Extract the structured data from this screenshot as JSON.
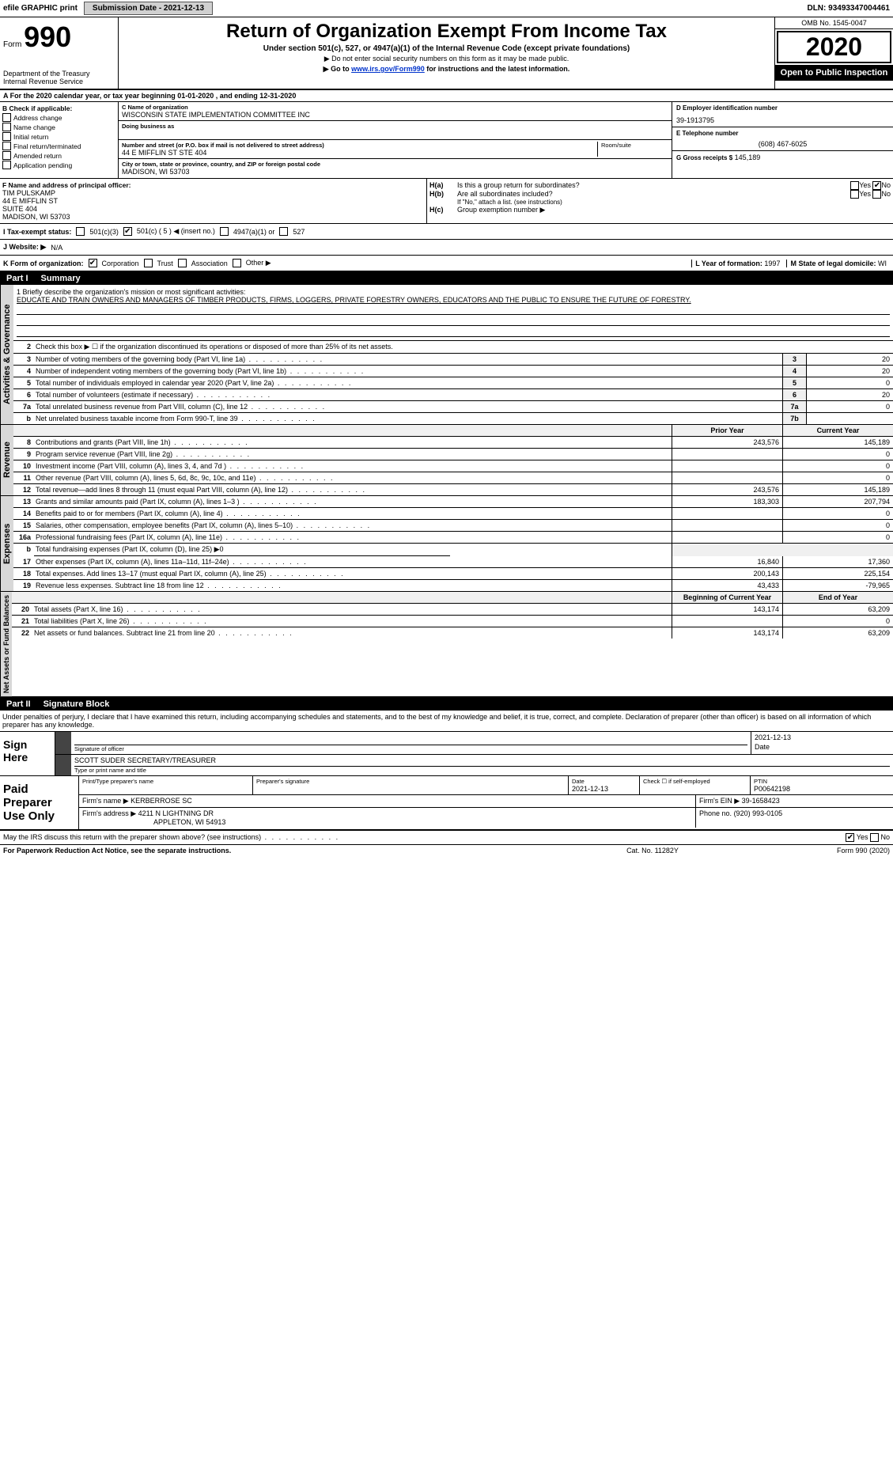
{
  "top": {
    "efile": "efile GRAPHIC print",
    "submit_btn": "Submission Date - 2021-12-13",
    "dln": "DLN: 93493347004461"
  },
  "header": {
    "form_word": "Form",
    "form_no": "990",
    "dept": "Department of the Treasury\nInternal Revenue Service",
    "title": "Return of Organization Exempt From Income Tax",
    "subtitle": "Under section 501(c), 527, or 4947(a)(1) of the Internal Revenue Code (except private foundations)",
    "note": "▶ Do not enter social security numbers on this form as it may be made public.",
    "goto_pre": "▶ Go to ",
    "goto_link": "www.irs.gov/Form990",
    "goto_post": " for instructions and the latest information.",
    "omb": "OMB No. 1545-0047",
    "year": "2020",
    "open": "Open to Public Inspection"
  },
  "period": "A For the 2020 calendar year, or tax year beginning 01-01-2020     , and ending 12-31-2020",
  "boxB": {
    "hdr": "B Check if applicable:",
    "opts": [
      "Address change",
      "Name change",
      "Initial return",
      "Final return/terminated",
      "Amended return",
      "Application pending"
    ]
  },
  "c": {
    "name_lbl": "C Name of organization",
    "name": "WISCONSIN STATE IMPLEMENTATION COMMITTEE INC",
    "dba_lbl": "Doing business as",
    "dba": "",
    "addr_lbl": "Number and street (or P.O. box if mail is not delivered to street address)",
    "room_lbl": "Room/suite",
    "addr": "44 E MIFFLIN ST STE 404",
    "city_lbl": "City or town, state or province, country, and ZIP or foreign postal code",
    "city": "MADISON, WI  53703"
  },
  "d": {
    "lbl": "D Employer identification number",
    "val": "39-1913795"
  },
  "e": {
    "lbl": "E Telephone number",
    "val": "(608) 467-6025"
  },
  "g": {
    "lbl": "G Gross receipts $",
    "val": "145,189"
  },
  "f": {
    "lbl": "F  Name and address of principal officer:",
    "name": "TIM PULSKAMP",
    "l1": "44 E MIFFLIN ST",
    "l2": "SUITE 404",
    "l3": "MADISON, WI  53703"
  },
  "h": {
    "a_q": "Is this a group return for subordinates?",
    "b_q": "Are all subordinates included?",
    "b_note": "If \"No,\" attach a list. (see instructions)",
    "c_q": "Group exemption number ▶",
    "yes": "Yes",
    "no": "No"
  },
  "i": {
    "lbl": "I   Tax-exempt status:",
    "o1": "501(c)(3)",
    "o2": "501(c) ( 5 ) ◀ (insert no.)",
    "o3": "4947(a)(1) or",
    "o4": "527"
  },
  "j": {
    "lbl": "J  Website: ▶",
    "val": "N/A"
  },
  "k": {
    "lbl": "K Form of organization:",
    "opts": [
      "Corporation",
      "Trust",
      "Association",
      "Other ▶"
    ]
  },
  "l": {
    "lbl": "L Year of formation:",
    "val": "1997"
  },
  "m": {
    "lbl": "M State of legal domicile:",
    "val": "WI"
  },
  "part1": {
    "pt": "Part I",
    "title": "Summary"
  },
  "mission": {
    "lead": "1   Briefly describe the organization's mission or most significant activities:",
    "text": "EDUCATE AND TRAIN OWNERS AND MANAGERS OF TIMBER PRODUCTS, FIRMS, LOGGERS, PRIVATE FORESTRY OWNERS, EDUCATORS AND THE PUBLIC TO ENSURE THE FUTURE OF FORESTRY."
  },
  "gov": {
    "side": "Activities & Governance",
    "l2": "Check this box ▶ ☐ if the organization discontinued its operations or disposed of more than 25% of its net assets.",
    "rows": [
      {
        "n": "3",
        "t": "Number of voting members of the governing body (Part VI, line 1a)",
        "b": "3",
        "v": "20"
      },
      {
        "n": "4",
        "t": "Number of independent voting members of the governing body (Part VI, line 1b)",
        "b": "4",
        "v": "20"
      },
      {
        "n": "5",
        "t": "Total number of individuals employed in calendar year 2020 (Part V, line 2a)",
        "b": "5",
        "v": "0"
      },
      {
        "n": "6",
        "t": "Total number of volunteers (estimate if necessary)",
        "b": "6",
        "v": "20"
      },
      {
        "n": "7a",
        "t": "Total unrelated business revenue from Part VIII, column (C), line 12",
        "b": "7a",
        "v": "0"
      },
      {
        "n": "b",
        "t": "Net unrelated business taxable income from Form 990-T, line 39",
        "b": "7b",
        "v": ""
      }
    ]
  },
  "yrhdr": {
    "py": "Prior Year",
    "cy": "Current Year"
  },
  "rev": {
    "side": "Revenue",
    "rows": [
      {
        "n": "8",
        "t": "Contributions and grants (Part VIII, line 1h)",
        "py": "243,576",
        "cy": "145,189"
      },
      {
        "n": "9",
        "t": "Program service revenue (Part VIII, line 2g)",
        "py": "",
        "cy": "0"
      },
      {
        "n": "10",
        "t": "Investment income (Part VIII, column (A), lines 3, 4, and 7d )",
        "py": "",
        "cy": "0"
      },
      {
        "n": "11",
        "t": "Other revenue (Part VIII, column (A), lines 5, 6d, 8c, 9c, 10c, and 11e)",
        "py": "",
        "cy": "0"
      },
      {
        "n": "12",
        "t": "Total revenue—add lines 8 through 11 (must equal Part VIII, column (A), line 12)",
        "py": "243,576",
        "cy": "145,189"
      }
    ]
  },
  "exp": {
    "side": "Expenses",
    "rows": [
      {
        "n": "13",
        "t": "Grants and similar amounts paid (Part IX, column (A), lines 1–3 )",
        "py": "183,303",
        "cy": "207,794"
      },
      {
        "n": "14",
        "t": "Benefits paid to or for members (Part IX, column (A), line 4)",
        "py": "",
        "cy": "0"
      },
      {
        "n": "15",
        "t": "Salaries, other compensation, employee benefits (Part IX, column (A), lines 5–10)",
        "py": "",
        "cy": "0"
      },
      {
        "n": "16a",
        "t": "Professional fundraising fees (Part IX, column (A), line 11e)",
        "py": "",
        "cy": "0"
      },
      {
        "n": "b",
        "t": "Total fundraising expenses (Part IX, column (D), line 25) ▶0",
        "py": "—",
        "cy": "—"
      },
      {
        "n": "17",
        "t": "Other expenses (Part IX, column (A), lines 11a–11d, 11f–24e)",
        "py": "16,840",
        "cy": "17,360"
      },
      {
        "n": "18",
        "t": "Total expenses. Add lines 13–17 (must equal Part IX, column (A), line 25)",
        "py": "200,143",
        "cy": "225,154"
      },
      {
        "n": "19",
        "t": "Revenue less expenses. Subtract line 18 from line 12",
        "py": "43,433",
        "cy": "-79,965"
      }
    ]
  },
  "nahdr": {
    "py": "Beginning of Current Year",
    "cy": "End of Year"
  },
  "na": {
    "side": "Net Assets or Fund Balances",
    "rows": [
      {
        "n": "20",
        "t": "Total assets (Part X, line 16)",
        "py": "143,174",
        "cy": "63,209"
      },
      {
        "n": "21",
        "t": "Total liabilities (Part X, line 26)",
        "py": "",
        "cy": "0"
      },
      {
        "n": "22",
        "t": "Net assets or fund balances. Subtract line 21 from line 20",
        "py": "143,174",
        "cy": "63,209"
      }
    ]
  },
  "part2": {
    "pt": "Part II",
    "title": "Signature Block"
  },
  "sigintro": "Under penalties of perjury, I declare that I have examined this return, including accompanying schedules and statements, and to the best of my knowledge and belief, it is true, correct, and complete. Declaration of preparer (other than officer) is based on all information of which preparer has any knowledge.",
  "sign": {
    "lbl": "Sign Here",
    "sig_lbl": "Signature of officer",
    "date_lbl": "Date",
    "date": "2021-12-13",
    "name": "SCOTT SUDER  SECRETARY/TREASURER",
    "name_lbl": "Type or print name and title"
  },
  "prep": {
    "lbl": "Paid Preparer Use Only",
    "h1": "Print/Type preparer's name",
    "h2": "Preparer's signature",
    "h3": "Date",
    "h3v": "2021-12-13",
    "h4": "Check ☐ if self-employed",
    "h5": "PTIN",
    "h5v": "P00642198",
    "firm_lbl": "Firm's name    ▶",
    "firm": "KERBERROSE SC",
    "ein_lbl": "Firm's EIN ▶",
    "ein": "39-1658423",
    "addr_lbl": "Firm's address ▶",
    "addr1": "4211 N LIGHTNING DR",
    "addr2": "APPLETON, WI  54913",
    "phone_lbl": "Phone no.",
    "phone": "(920) 993-0105"
  },
  "discuss": {
    "q": "May the IRS discuss this return with the preparer shown above? (see instructions)",
    "yes": "Yes",
    "no": "No"
  },
  "footer": {
    "l": "For Paperwork Reduction Act Notice, see the separate instructions.",
    "m": "Cat. No. 11282Y",
    "r": "Form 990 (2020)"
  },
  "colors": {
    "link": "#0033cc",
    "shade": "#d8d8d8"
  }
}
